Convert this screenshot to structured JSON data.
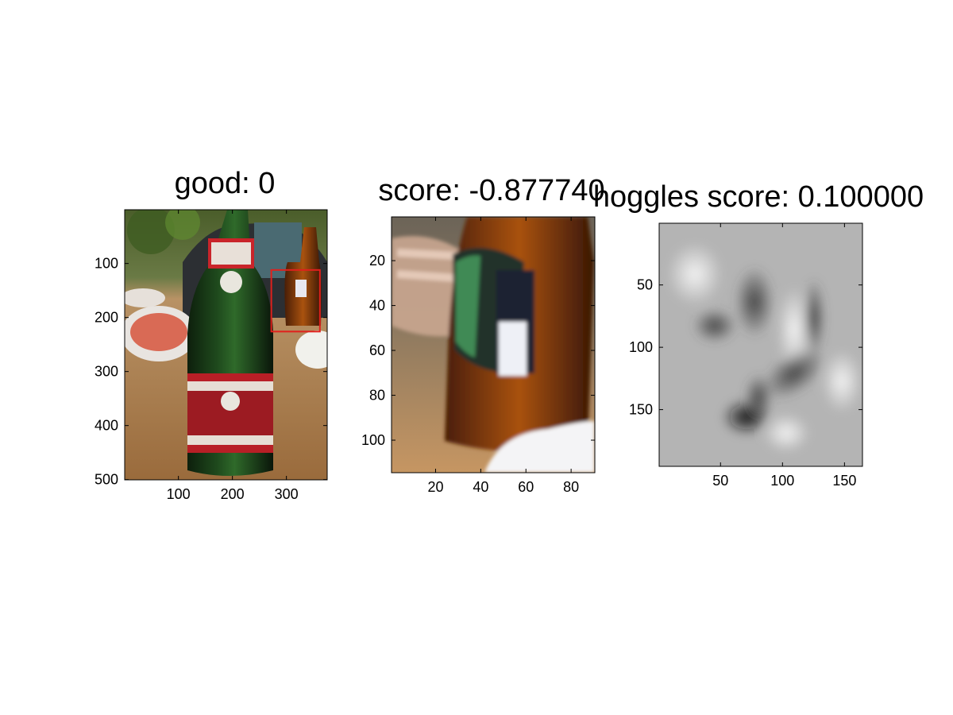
{
  "chart_data": [
    {
      "type": "image",
      "title": "good: 0",
      "image_size": [
        375,
        500
      ],
      "xticks": [
        100,
        200,
        300
      ],
      "yticks": [
        100,
        200,
        300,
        400,
        500
      ],
      "detection_box": {
        "x": [
          272,
          362
        ],
        "y": [
          112,
          226
        ],
        "color": "#e0201c"
      }
    },
    {
      "type": "image",
      "title": "score: -0.877740",
      "image_size": [
        90,
        114
      ],
      "xticks": [
        20,
        40,
        60,
        80
      ],
      "yticks": [
        20,
        40,
        60,
        80,
        100
      ]
    },
    {
      "type": "heatmap",
      "title": "hoggles score: 0.100000",
      "image_size": [
        164,
        195
      ],
      "colormap": "gray",
      "xticks": [
        50,
        100,
        150
      ],
      "yticks": [
        50,
        100,
        150
      ]
    }
  ]
}
